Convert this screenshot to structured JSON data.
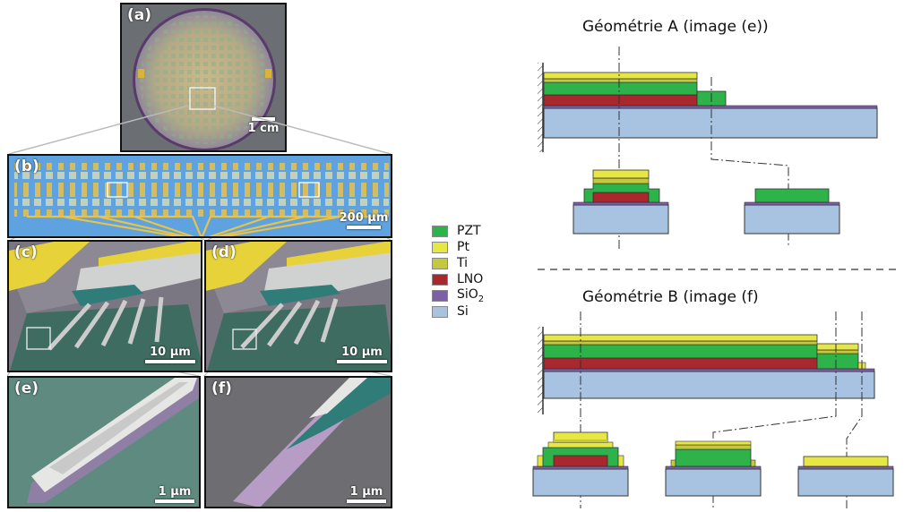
{
  "panels": {
    "a": {
      "label": "(a)",
      "scale": "1 cm"
    },
    "b": {
      "label": "(b)",
      "scale": "200 μm"
    },
    "c": {
      "label": "(c)",
      "scale": "10 μm"
    },
    "d": {
      "label": "(d)",
      "scale": "10 μm"
    },
    "e": {
      "label": "(e)",
      "scale": "1 μm"
    },
    "f": {
      "label": "(f)",
      "scale": "1 μm"
    }
  },
  "legend": [
    {
      "label": "PZT",
      "color": "#2db34a"
    },
    {
      "label": "Pt",
      "color": "#e6e645"
    },
    {
      "label": "Ti",
      "color": "#c3c83c"
    },
    {
      "label": "LNO",
      "color": "#a8282d"
    },
    {
      "label": "SiO",
      "sub": "2",
      "color": "#7d5fa5"
    },
    {
      "label": "Si",
      "color": "#a7c3e1"
    }
  ],
  "geometry_a": {
    "title": "Géométrie A (image (e))"
  },
  "geometry_b": {
    "title": "Géométrie B (image (f)"
  }
}
